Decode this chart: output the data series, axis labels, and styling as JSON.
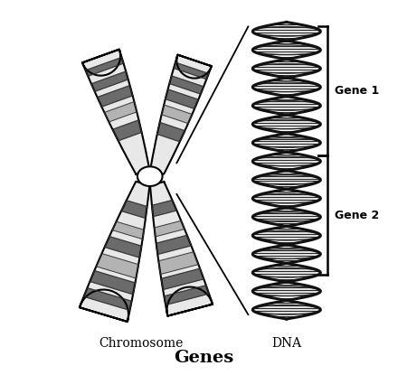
{
  "title": "Genes",
  "title_fontsize": 14,
  "title_bold": true,
  "label_chromosome": "Chromosome",
  "label_dna": "DNA",
  "label_gene1": "Gene 1",
  "label_gene2": "Gene 2",
  "bg_color": "#ffffff",
  "line_color": "#000000",
  "figsize": [
    4.5,
    4.15
  ],
  "dpi": 100
}
